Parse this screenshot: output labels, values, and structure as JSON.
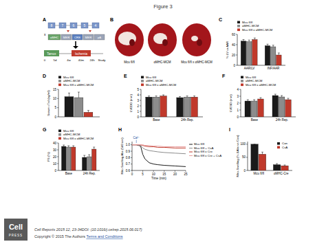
{
  "figure_title": "Figure 3",
  "panel_labels": [
    "A",
    "B",
    "C",
    "D",
    "E",
    "F",
    "G",
    "H",
    "I"
  ],
  "diagram_a": {
    "row1": [
      "8",
      "7",
      "6",
      "5",
      "4"
    ],
    "cross": "x",
    "row2": [
      "αMHC",
      "MER",
      "CRE",
      "MER",
      "pA"
    ],
    "timeline_boxes": [
      "Tamox",
      "Ischemia"
    ],
    "timeline_labels": [
      "0",
      "5d",
      "4w",
      "40m",
      "24h",
      "Study"
    ]
  },
  "images_b": {
    "labels": [
      "Mcu fl/fl",
      "αMHC-MCM",
      "Mcu fl/fl x αMHC-MCM"
    ]
  },
  "chart_data": [
    {
      "type": "bar",
      "y_label": "% LV or AAR",
      "categories": [
        "AAR/LV",
        "INF/AAR"
      ],
      "legend": "top",
      "series": [
        {
          "name": "Mcu fl/fl",
          "color": "#1a1a1a",
          "values": [
            47,
            38
          ],
          "errors": [
            3,
            3
          ]
        },
        {
          "name": "αMHC-MCM",
          "color": "#8c8c8c",
          "values": [
            46,
            36
          ],
          "errors": [
            3,
            3
          ]
        },
        {
          "name": "Mcu fl/fl x αMHC-MCM",
          "color": "#c0392b",
          "values": [
            50,
            20
          ],
          "errors": [
            3,
            4
          ]
        }
      ],
      "ylim": [
        0,
        60
      ],
      "yticks": [
        0,
        20,
        40,
        60
      ]
    },
    {
      "type": "bar",
      "y_label": "Serum cTnI (ng/ml)",
      "categories": [
        null
      ],
      "legend": "top",
      "series": [
        {
          "name": "Mcu fl/fl",
          "color": "#1a1a1a",
          "values": [
            11
          ],
          "errors": [
            2
          ]
        },
        {
          "name": "αMHC-MCM",
          "color": "#8c8c8c",
          "values": [
            10.5
          ],
          "errors": [
            3
          ]
        },
        {
          "name": "Mcu fl/fl x αMHC-MCM",
          "color": "#c0392b",
          "values": [
            2.5
          ],
          "errors": [
            1
          ]
        }
      ],
      "ylim": [
        0,
        15
      ],
      "yticks": [
        0,
        5,
        10,
        15
      ]
    },
    {
      "type": "bar",
      "y_label": "LVEDD (mm)",
      "categories": [
        "Base",
        "24h Rep."
      ],
      "legend": "top",
      "series": [
        {
          "name": "Mcu fl/fl",
          "color": "#1a1a1a",
          "values": [
            3.6,
            3.5
          ],
          "errors": [
            0.2,
            0.2
          ]
        },
        {
          "name": "αMHC-MCM",
          "color": "#8c8c8c",
          "values": [
            3.6,
            3.6
          ],
          "errors": [
            0.2,
            0.2
          ]
        },
        {
          "name": "Mcu fl/fl x αMHC-MCM",
          "color": "#c0392b",
          "values": [
            3.8,
            3.6
          ],
          "errors": [
            0.2,
            0.2
          ]
        }
      ],
      "ylim": [
        0,
        5
      ],
      "yticks": [
        0,
        1,
        2,
        3,
        4,
        5
      ]
    },
    {
      "type": "bar",
      "y_label": "LVESD (mm)",
      "categories": [
        "Base",
        "24h Rep."
      ],
      "legend": "top",
      "series": [
        {
          "name": "Mcu fl/fl",
          "color": "#1a1a1a",
          "values": [
            2.3,
            3.1
          ],
          "errors": [
            0.2,
            0.2
          ]
        },
        {
          "name": "αMHC-MCM",
          "color": "#8c8c8c",
          "values": [
            2.3,
            2.9
          ],
          "errors": [
            0.2,
            0.2
          ]
        },
        {
          "name": "Mcu fl/fl x αMHC-MCM",
          "color": "#c0392b",
          "values": [
            2.6,
            2.5
          ],
          "errors": [
            0.2,
            0.2
          ]
        }
      ],
      "ylim": [
        0,
        4
      ],
      "yticks": [
        0,
        1,
        2,
        3,
        4
      ]
    },
    {
      "type": "bar",
      "y_label": "FS (%)",
      "categories": [
        "Base",
        "24h Rep."
      ],
      "legend": "top",
      "series": [
        {
          "name": "Mcu fl/fl",
          "color": "#1a1a1a",
          "values": [
            35,
            19
          ],
          "errors": [
            2,
            3
          ]
        },
        {
          "name": "αMHC-MCM",
          "color": "#8c8c8c",
          "values": [
            34,
            20
          ],
          "errors": [
            2,
            3
          ]
        },
        {
          "name": "Mcu fl/fl x αMHC-MCM",
          "color": "#c0392b",
          "values": [
            34,
            31
          ],
          "errors": [
            2,
            3
          ]
        }
      ],
      "ylim": [
        0,
        40
      ],
      "yticks": [
        0,
        10,
        20,
        30,
        40
      ]
    },
    {
      "type": "line",
      "y_label": "Mito Swelling Abs (540 nm)",
      "x_label": "Time (min)",
      "legend": "right",
      "x": [
        0,
        2,
        4,
        5,
        6,
        8,
        10,
        12,
        15,
        20,
        25
      ],
      "series": [
        {
          "name": "Mcu fl/fl",
          "color": "#1a1a1a",
          "values": [
            1.0,
            1.0,
            0.98,
            0.85,
            0.78,
            0.72,
            0.7,
            0.69,
            0.68,
            0.67,
            0.66
          ]
        },
        {
          "name": "Mcu fl/fl + CsA",
          "color": "#8c8c8c",
          "values": [
            1.0,
            1.0,
            0.99,
            0.95,
            0.93,
            0.91,
            0.9,
            0.89,
            0.88,
            0.87,
            0.86
          ]
        },
        {
          "name": "Mcu fl/fl x Cre",
          "color": "#c0392b",
          "values": [
            1.0,
            1.0,
            1.0,
            0.99,
            0.98,
            0.97,
            0.97,
            0.96,
            0.96,
            0.95,
            0.95
          ]
        },
        {
          "name": "Mcu fl/fl x Cre + CsA",
          "color": "#e8a0a0",
          "values": [
            1.0,
            1.0,
            1.0,
            1.0,
            0.99,
            0.99,
            0.98,
            0.98,
            0.97,
            0.97,
            0.97
          ]
        }
      ],
      "xlim": [
        0,
        25
      ],
      "xticks": [
        0,
        5,
        10,
        15,
        20,
        25
      ],
      "ylim": [
        0.6,
        1.05
      ],
      "yticks": [
        0.6,
        0.7,
        0.8,
        0.9,
        {
          "value": 1,
          "label": "1.0"
        }
      ],
      "annotations": [
        {
          "text": "Ca²⁺",
          "x": 2
        }
      ]
    },
    {
      "type": "bar",
      "y_label": "Mito-Swelling (% ΔAbs vs Con)",
      "categories": [
        "Mcu fl/fl",
        "αMHC-Cre"
      ],
      "legend": "top-right",
      "series": [
        {
          "name": "Con",
          "color": "#1a1a1a",
          "values": [
            100,
            22
          ],
          "errors": [
            0,
            4
          ]
        },
        {
          "name": "CsA",
          "color": "#c0392b",
          "values": [
            62,
            18
          ],
          "errors": [
            8,
            3
          ]
        }
      ],
      "ylim": [
        0,
        110
      ],
      "yticks": [
        0,
        50,
        100
      ]
    }
  ],
  "footer": {
    "logo_word": "Cell",
    "logo_sub": "PRESS",
    "journal": "Cell Reports 2015 12, 23-34DOI: (10.1016/j.celrep.2015.06.017)",
    "copyright": "Copyright © 2015 The Authors ",
    "terms": "Terms and Conditions"
  }
}
